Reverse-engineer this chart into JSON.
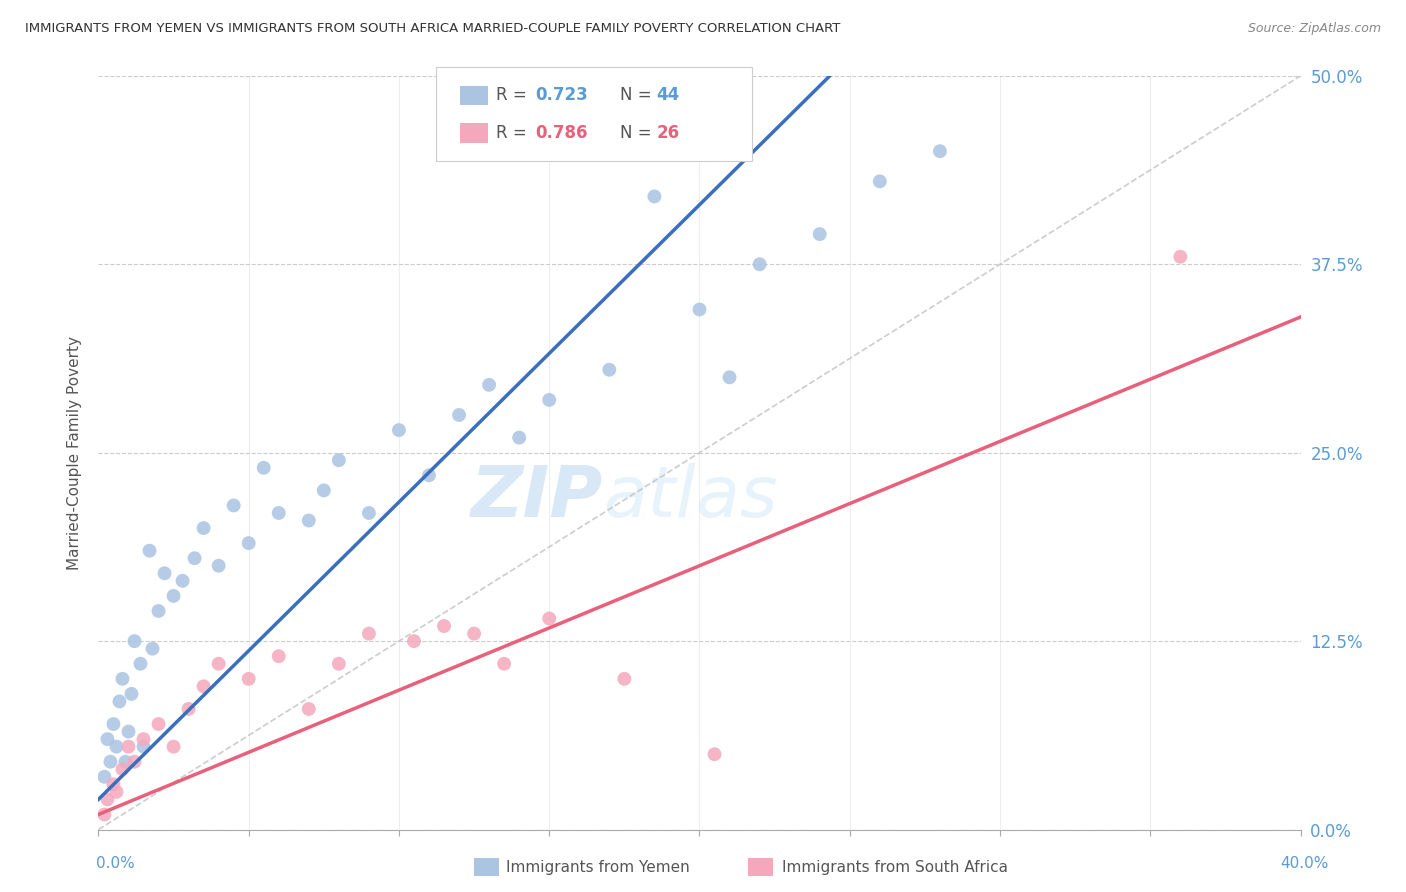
{
  "title": "IMMIGRANTS FROM YEMEN VS IMMIGRANTS FROM SOUTH AFRICA MARRIED-COUPLE FAMILY POVERTY CORRELATION CHART",
  "source": "Source: ZipAtlas.com",
  "ylabel": "Married-Couple Family Poverty",
  "ytick_labels": [
    "0.0%",
    "12.5%",
    "25.0%",
    "37.5%",
    "50.0%"
  ],
  "ytick_values": [
    0.0,
    12.5,
    25.0,
    37.5,
    50.0
  ],
  "xlim": [
    0.0,
    40.0
  ],
  "ylim": [
    0.0,
    50.0
  ],
  "color_yemen": "#aac4e2",
  "color_sa": "#f5a8bc",
  "color_yemen_line": "#3a6fbd",
  "color_sa_line": "#e8607a",
  "color_ref_line": "#c0c0c0",
  "watermark_zip": "ZIP",
  "watermark_atlas": "atlas",
  "yemen_x": [
    0.2,
    0.3,
    0.4,
    0.5,
    0.6,
    0.7,
    0.8,
    0.9,
    1.0,
    1.1,
    1.2,
    1.4,
    1.5,
    1.7,
    1.8,
    2.0,
    2.2,
    2.5,
    2.8,
    3.2,
    3.5,
    4.0,
    4.5,
    5.0,
    5.5,
    6.0,
    7.0,
    7.5,
    8.0,
    9.0,
    10.0,
    11.0,
    12.0,
    13.0,
    14.0,
    15.0,
    17.0,
    18.5,
    20.0,
    21.0,
    22.0,
    24.0,
    26.0,
    28.0
  ],
  "yemen_y": [
    3.5,
    6.0,
    4.5,
    7.0,
    5.5,
    8.5,
    10.0,
    4.5,
    6.5,
    9.0,
    12.5,
    11.0,
    5.5,
    18.5,
    12.0,
    14.5,
    17.0,
    15.5,
    16.5,
    18.0,
    20.0,
    17.5,
    21.5,
    19.0,
    24.0,
    21.0,
    20.5,
    22.5,
    24.5,
    21.0,
    26.5,
    23.5,
    27.5,
    29.5,
    26.0,
    28.5,
    30.5,
    42.0,
    34.5,
    30.0,
    37.5,
    39.5,
    43.0,
    45.0
  ],
  "sa_x": [
    0.2,
    0.3,
    0.5,
    0.6,
    0.8,
    1.0,
    1.2,
    1.5,
    2.0,
    2.5,
    3.0,
    3.5,
    4.0,
    5.0,
    6.0,
    7.0,
    8.0,
    9.0,
    10.5,
    11.5,
    12.5,
    13.5,
    15.0,
    17.5,
    20.5,
    36.0
  ],
  "sa_y": [
    1.0,
    2.0,
    3.0,
    2.5,
    4.0,
    5.5,
    4.5,
    6.0,
    7.0,
    5.5,
    8.0,
    9.5,
    11.0,
    10.0,
    11.5,
    8.0,
    11.0,
    13.0,
    12.5,
    13.5,
    13.0,
    11.0,
    14.0,
    10.0,
    5.0,
    38.0
  ],
  "xtick_positions": [
    0,
    5,
    10,
    15,
    20,
    25,
    30,
    35,
    40
  ],
  "xtick_minor": [
    5,
    10,
    15,
    20,
    25,
    30,
    35
  ]
}
